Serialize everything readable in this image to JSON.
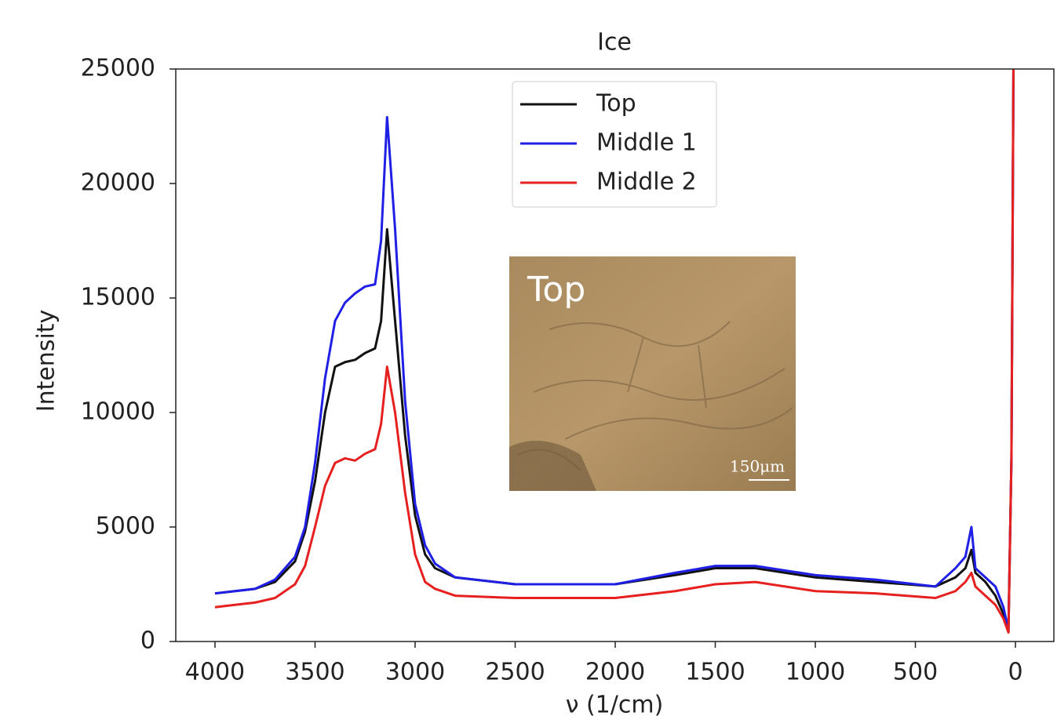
{
  "chart_data": {
    "type": "line",
    "title": "Ice",
    "x_label": "ν (1/cm)",
    "y_label": "Intensity",
    "x": [
      4000,
      3900,
      3800,
      3700,
      3600,
      3550,
      3500,
      3450,
      3400,
      3350,
      3300,
      3250,
      3200,
      3170,
      3140,
      3100,
      3050,
      3000,
      2950,
      2900,
      2800,
      2500,
      2000,
      1700,
      1500,
      1300,
      1000,
      700,
      400,
      300,
      250,
      220,
      200,
      150,
      100,
      60,
      35,
      20,
      10
    ],
    "series": [
      {
        "name": "Top",
        "color": "#111111",
        "values": [
          2100,
          2200,
          2300,
          2600,
          3500,
          4800,
          7000,
          10000,
          12000,
          12200,
          12300,
          12600,
          12800,
          14000,
          18000,
          14000,
          9000,
          5500,
          3800,
          3200,
          2800,
          2500,
          2500,
          2900,
          3200,
          3200,
          2800,
          2600,
          2400,
          2800,
          3200,
          4000,
          3000,
          2600,
          2000,
          1200,
          400,
          8000,
          25000
        ]
      },
      {
        "name": "Middle 1",
        "color": "#1f1fe6",
        "values": [
          2100,
          2200,
          2300,
          2700,
          3700,
          5000,
          7800,
          11500,
          14000,
          14800,
          15200,
          15500,
          15600,
          17500,
          22900,
          18000,
          10500,
          6000,
          4200,
          3400,
          2800,
          2500,
          2500,
          3000,
          3300,
          3300,
          2900,
          2700,
          2400,
          3200,
          3700,
          5000,
          3200,
          2800,
          2400,
          1500,
          500,
          8000,
          25000
        ]
      },
      {
        "name": "Middle 2",
        "color": "#e61f1f",
        "values": [
          1500,
          1600,
          1700,
          1900,
          2500,
          3300,
          5000,
          6800,
          7800,
          8000,
          7900,
          8200,
          8400,
          9500,
          12000,
          10000,
          6500,
          3800,
          2600,
          2300,
          2000,
          1900,
          1900,
          2200,
          2500,
          2600,
          2200,
          2100,
          1900,
          2200,
          2600,
          3000,
          2400,
          2000,
          1600,
          1000,
          400,
          8000,
          25000
        ]
      }
    ],
    "xlim": [
      4196,
      -192
    ],
    "ylim": [
      0,
      25000
    ],
    "xticks": [
      4000,
      3500,
      3000,
      2500,
      2000,
      1500,
      1000,
      500,
      0
    ],
    "yticks": [
      0,
      5000,
      10000,
      15000,
      20000,
      25000
    ],
    "legend": "upper center",
    "inset": {
      "label": "Top",
      "scale_bar": "150μm"
    }
  }
}
